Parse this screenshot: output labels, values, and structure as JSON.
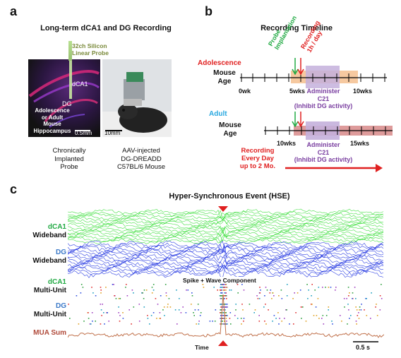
{
  "panels": {
    "a": "a",
    "b": "b",
    "c": "c"
  },
  "panel_a": {
    "title": "Long-term dCA1 and DG Recording",
    "probe_label": "32ch Silicon\nLinear Probe",
    "region_dca1": "dCA1",
    "region_dg": "DG",
    "hippocampus_label": "Adolescence\nor Adult\nMouse\nHippocampus",
    "scale_left": "0.5mm",
    "scale_right": "10mm",
    "caption_left": "Chronically\nImplanted\nProbe",
    "caption_right": "AAV-injected\nDG-DREADD\nC57BL/6 Mouse"
  },
  "panel_b": {
    "title": "Recording Timeline",
    "adolescence": "Adolescence",
    "adult": "Adult",
    "mouse_age": "Mouse\nAge",
    "ticks_top": [
      "0wk",
      "5wks",
      "10wks"
    ],
    "ticks_bottom": [
      "10wks",
      "15wks"
    ],
    "probe_implantation": "Probe\nImplantation",
    "recording": "Recording\n1h / day",
    "administer": "Administer\nC21\n(Inhibit DG activity)",
    "recording_every_day": "Recording\nEvery Day\nup to 2 Mo.",
    "colors": {
      "green": "#22aa44",
      "red": "#e02020",
      "purple": "#7a3fa0",
      "cyan": "#29a8e0",
      "peach": "#f6c9a0",
      "lavender": "#c4b0dc",
      "pink": "#d88a8a"
    }
  },
  "panel_c": {
    "title": "Hyper-Synchronous Event (HSE)",
    "dca1_wideband": [
      "dCA1",
      "Wideband"
    ],
    "dg_wideband": [
      "DG",
      "Wideband"
    ],
    "dca1_multiunit": [
      "dCA1",
      "Multi-Unit"
    ],
    "dg_multiunit": [
      "DG",
      "Multi-Unit"
    ],
    "mua_sum": "MUA Sum",
    "spike_wave": "Spike + Wave Component",
    "time": "Time",
    "scale": "0.5 s",
    "colors": {
      "green": "#33dd33",
      "blue": "#1a2ee0",
      "mua": "#c0704a",
      "dca1_label": "#22aa44",
      "dg_label": "#3a78c8",
      "mua_label": "#b04a3a"
    }
  }
}
